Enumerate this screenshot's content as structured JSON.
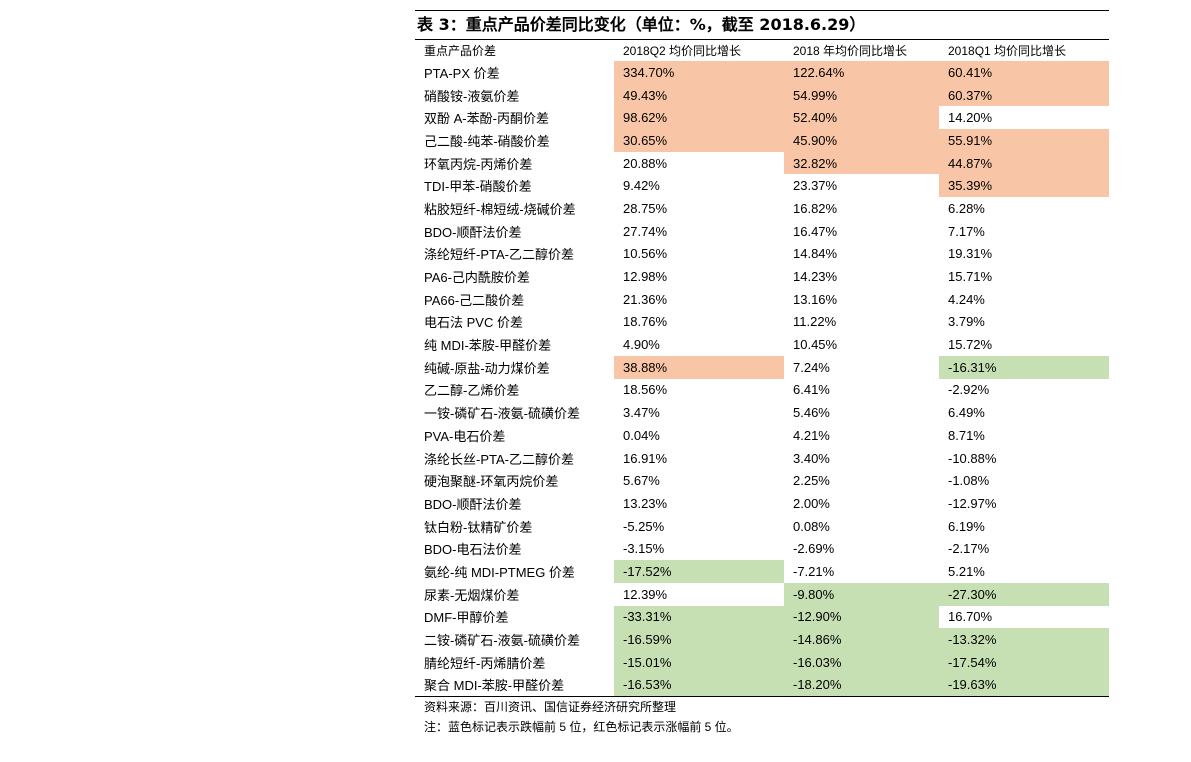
{
  "title": "表 3：重点产品价差同比变化（单位：%，截至 2018.6.29）",
  "colors": {
    "rise": "#f8c6a6",
    "fall": "#c6e0b4"
  },
  "headers": [
    "重点产品价差",
    "2018Q2 均价同比增长",
    "2018 年均价同比增长",
    "2018Q1 均价同比增长"
  ],
  "rows": [
    {
      "name": "PTA-PX 价差",
      "q2": "334.70%",
      "year": "122.64%",
      "q1": "60.41%",
      "q2_hl": "up",
      "year_hl": "up",
      "q1_hl": "up"
    },
    {
      "name": "硝酸铵-液氨价差",
      "q2": "49.43%",
      "year": "54.99%",
      "q1": "60.37%",
      "q2_hl": "up",
      "year_hl": "up",
      "q1_hl": "up"
    },
    {
      "name": "双酚 A-苯酚-丙酮价差",
      "q2": "98.62%",
      "year": "52.40%",
      "q1": "14.20%",
      "q2_hl": "up",
      "year_hl": "up",
      "q1_hl": ""
    },
    {
      "name": "己二酸-纯苯-硝酸价差",
      "q2": "30.65%",
      "year": "45.90%",
      "q1": "55.91%",
      "q2_hl": "up",
      "year_hl": "up",
      "q1_hl": "up"
    },
    {
      "name": "环氧丙烷-丙烯价差",
      "q2": "20.88%",
      "year": "32.82%",
      "q1": "44.87%",
      "q2_hl": "",
      "year_hl": "up",
      "q1_hl": "up"
    },
    {
      "name": "TDI-甲苯-硝酸价差",
      "q2": "9.42%",
      "year": "23.37%",
      "q1": "35.39%",
      "q2_hl": "",
      "year_hl": "",
      "q1_hl": "up"
    },
    {
      "name": "粘胶短纤-棉短绒-烧碱价差",
      "q2": "28.75%",
      "year": "16.82%",
      "q1": "6.28%",
      "q2_hl": "",
      "year_hl": "",
      "q1_hl": ""
    },
    {
      "name": "BDO-顺酐法价差",
      "q2": "27.74%",
      "year": "16.47%",
      "q1": "7.17%",
      "q2_hl": "",
      "year_hl": "",
      "q1_hl": ""
    },
    {
      "name": "涤纶短纤-PTA-乙二醇价差",
      "q2": "10.56%",
      "year": "14.84%",
      "q1": "19.31%",
      "q2_hl": "",
      "year_hl": "",
      "q1_hl": ""
    },
    {
      "name": "PA6-己内酰胺价差",
      "q2": "12.98%",
      "year": "14.23%",
      "q1": "15.71%",
      "q2_hl": "",
      "year_hl": "",
      "q1_hl": ""
    },
    {
      "name": "PA66-己二酸价差",
      "q2": "21.36%",
      "year": "13.16%",
      "q1": "4.24%",
      "q2_hl": "",
      "year_hl": "",
      "q1_hl": ""
    },
    {
      "name": "电石法 PVC 价差",
      "q2": "18.76%",
      "year": "11.22%",
      "q1": "3.79%",
      "q2_hl": "",
      "year_hl": "",
      "q1_hl": ""
    },
    {
      "name": "纯 MDI-苯胺-甲醛价差",
      "q2": "4.90%",
      "year": "10.45%",
      "q1": "15.72%",
      "q2_hl": "",
      "year_hl": "",
      "q1_hl": ""
    },
    {
      "name": "纯碱-原盐-动力煤价差",
      "q2": "38.88%",
      "year": "7.24%",
      "q1": "-16.31%",
      "q2_hl": "up",
      "year_hl": "",
      "q1_hl": "down"
    },
    {
      "name": "乙二醇-乙烯价差",
      "q2": "18.56%",
      "year": "6.41%",
      "q1": "-2.92%",
      "q2_hl": "",
      "year_hl": "",
      "q1_hl": ""
    },
    {
      "name": "一铵-磷矿石-液氨-硫磺价差",
      "q2": "3.47%",
      "year": "5.46%",
      "q1": "6.49%",
      "q2_hl": "",
      "year_hl": "",
      "q1_hl": ""
    },
    {
      "name": "PVA-电石价差",
      "q2": "0.04%",
      "year": "4.21%",
      "q1": "8.71%",
      "q2_hl": "",
      "year_hl": "",
      "q1_hl": ""
    },
    {
      "name": "涤纶长丝-PTA-乙二醇价差",
      "q2": "16.91%",
      "year": "3.40%",
      "q1": "-10.88%",
      "q2_hl": "",
      "year_hl": "",
      "q1_hl": ""
    },
    {
      "name": "硬泡聚醚-环氧丙烷价差",
      "q2": "5.67%",
      "year": "2.25%",
      "q1": "-1.08%",
      "q2_hl": "",
      "year_hl": "",
      "q1_hl": ""
    },
    {
      "name": "BDO-顺酐法价差",
      "q2": "13.23%",
      "year": "2.00%",
      "q1": "-12.97%",
      "q2_hl": "",
      "year_hl": "",
      "q1_hl": ""
    },
    {
      "name": "钛白粉-钛精矿价差",
      "q2": "-5.25%",
      "year": "0.08%",
      "q1": "6.19%",
      "q2_hl": "",
      "year_hl": "",
      "q1_hl": ""
    },
    {
      "name": "BDO-电石法价差",
      "q2": "-3.15%",
      "year": "-2.69%",
      "q1": "-2.17%",
      "q2_hl": "",
      "year_hl": "",
      "q1_hl": ""
    },
    {
      "name": "氨纶-纯 MDI-PTMEG 价差",
      "q2": "-17.52%",
      "year": "-7.21%",
      "q1": "5.21%",
      "q2_hl": "down",
      "year_hl": "",
      "q1_hl": ""
    },
    {
      "name": "尿素-无烟煤价差",
      "q2": "12.39%",
      "year": "-9.80%",
      "q1": "-27.30%",
      "q2_hl": "",
      "year_hl": "down",
      "q1_hl": "down"
    },
    {
      "name": "DMF-甲醇价差",
      "q2": "-33.31%",
      "year": "-12.90%",
      "q1": "16.70%",
      "q2_hl": "down",
      "year_hl": "down",
      "q1_hl": ""
    },
    {
      "name": "二铵-磷矿石-液氨-硫磺价差",
      "q2": "-16.59%",
      "year": "-14.86%",
      "q1": "-13.32%",
      "q2_hl": "down",
      "year_hl": "down",
      "q1_hl": "down"
    },
    {
      "name": "腈纶短纤-丙烯腈价差",
      "q2": "-15.01%",
      "year": "-16.03%",
      "q1": "-17.54%",
      "q2_hl": "down",
      "year_hl": "down",
      "q1_hl": "down"
    },
    {
      "name": "聚合 MDI-苯胺-甲醛价差",
      "q2": "-16.53%",
      "year": "-18.20%",
      "q1": "-19.63%",
      "q2_hl": "down",
      "year_hl": "down",
      "q1_hl": "down"
    }
  ],
  "source": "资料来源：百川资讯、国信证券经济研究所整理",
  "note": "注：蓝色标记表示跌幅前 5 位，红色标记表示涨幅前 5 位。"
}
